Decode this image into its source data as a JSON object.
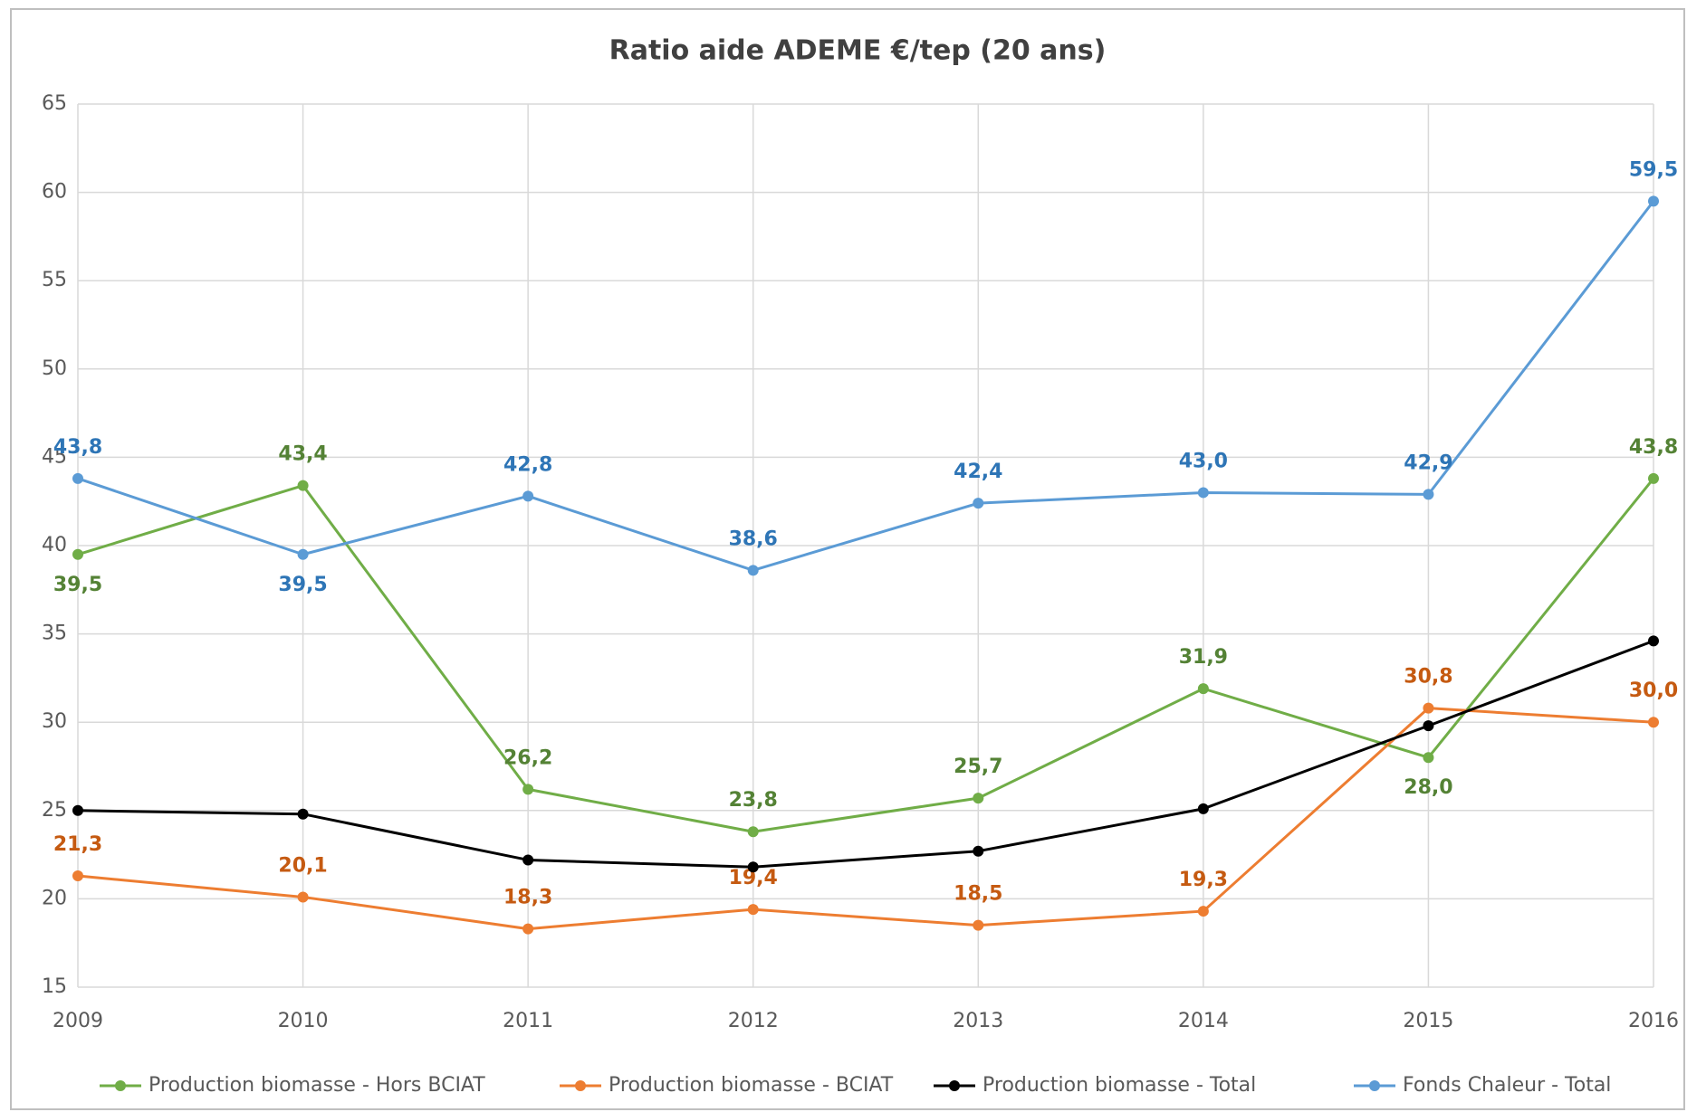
{
  "chart_data": {
    "type": "line",
    "title": "Ratio aide ADEME €/tep (20 ans)",
    "categories": [
      "2009",
      "2010",
      "2011",
      "2012",
      "2013",
      "2014",
      "2015",
      "2016"
    ],
    "series": [
      {
        "name": "Production biomasse - Hors BCIAT",
        "color": "#70ad47",
        "label_color": "#548235",
        "values": [
          39.5,
          43.4,
          26.2,
          23.8,
          25.7,
          31.9,
          28.0,
          43.8
        ],
        "value_labels": [
          "39,5",
          "43,4",
          "26,2",
          "23,8",
          "25,7",
          "31,9",
          "28,0",
          "43,8"
        ]
      },
      {
        "name": "Production biomasse - BCIAT",
        "color": "#ed7d31",
        "label_color": "#c55a11",
        "values": [
          21.3,
          20.1,
          18.3,
          19.4,
          18.5,
          19.3,
          30.8,
          30.0
        ],
        "value_labels": [
          "21,3",
          "20,1",
          "18,3",
          "19,4",
          "18,5",
          "19,3",
          "30,8",
          "30,0"
        ]
      },
      {
        "name": "Production biomasse - Total",
        "color": "#000000",
        "values": [
          25.0,
          24.8,
          22.2,
          21.8,
          22.7,
          25.1,
          29.8,
          34.6
        ]
      },
      {
        "name": "Fonds Chaleur - Total",
        "color": "#5b9bd5",
        "label_color": "#2e75b6",
        "values": [
          43.8,
          39.5,
          42.8,
          38.6,
          42.4,
          43.0,
          42.9,
          59.5
        ],
        "value_labels": [
          "43,8",
          "39,5",
          "42,8",
          "38,6",
          "42,4",
          "43,0",
          "42,9",
          "59,5"
        ]
      }
    ],
    "ylim": [
      15,
      65
    ],
    "yticks": [
      15,
      20,
      25,
      30,
      35,
      40,
      45,
      50,
      55,
      60,
      65
    ],
    "grid": true,
    "legend": "bottom"
  }
}
